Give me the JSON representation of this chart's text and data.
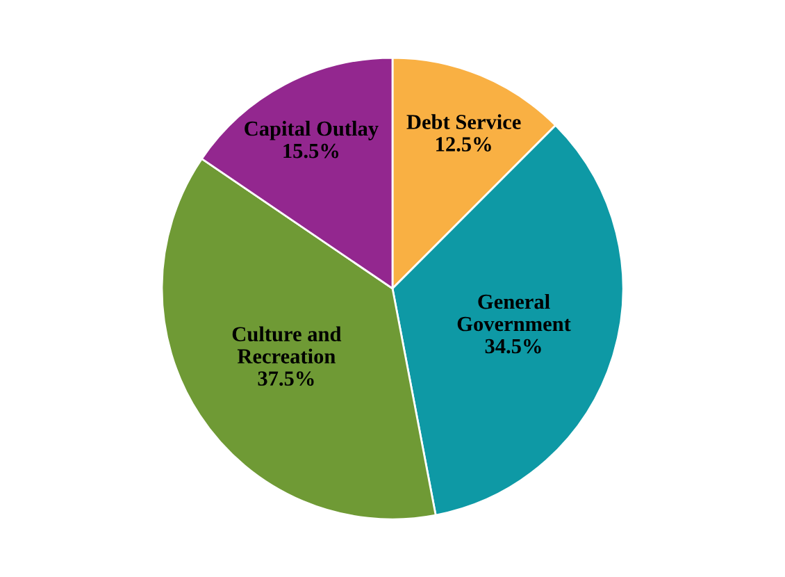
{
  "chart_data": {
    "type": "pie",
    "categories": [
      "Debt Service",
      "General Government",
      "Culture and Recreation",
      "Capital Outlay"
    ],
    "values": [
      12.5,
      34.5,
      37.5,
      15.5
    ],
    "value_labels": [
      "12.5%",
      "34.5%",
      "37.5%",
      "15.5%"
    ],
    "colors": [
      "#f9b043",
      "#0e99a5",
      "#6f9a35",
      "#93278f"
    ],
    "legend": false
  }
}
